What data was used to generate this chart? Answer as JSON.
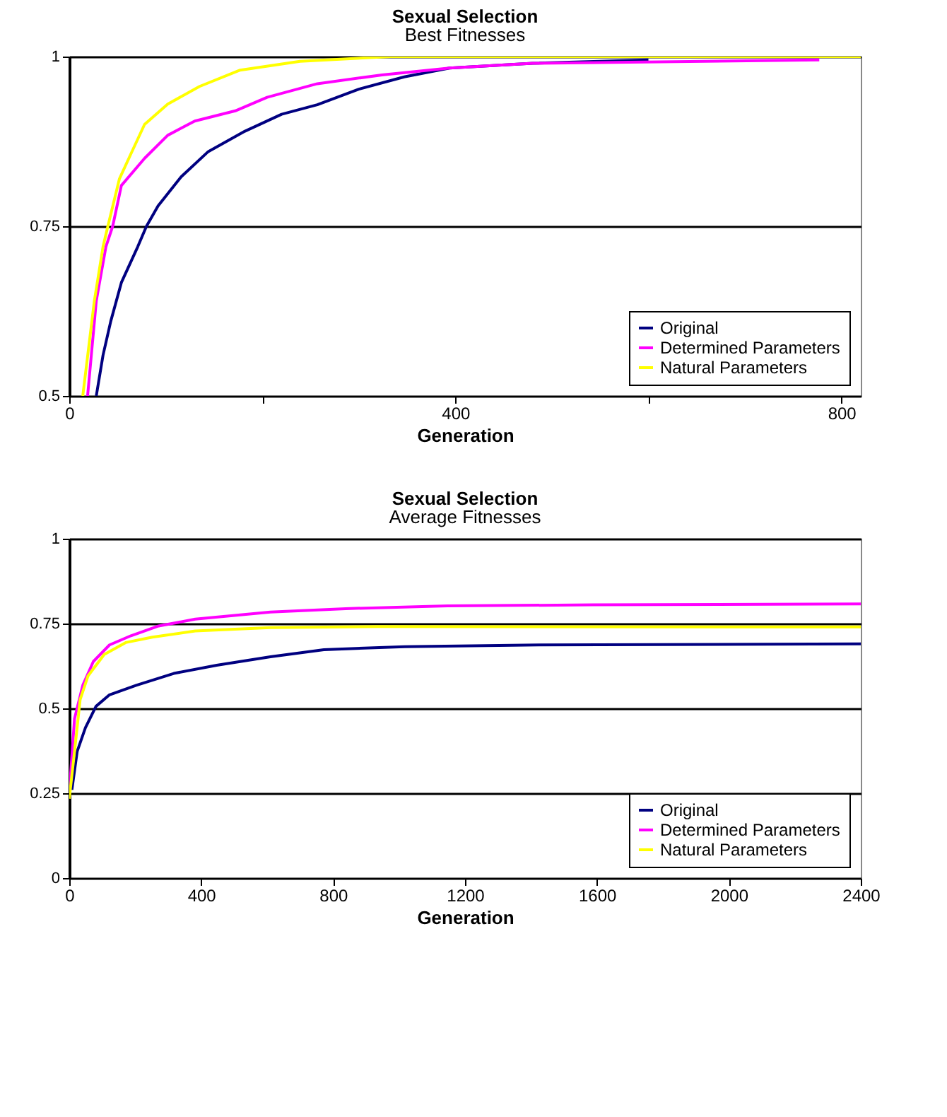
{
  "chart_data": [
    {
      "type": "line",
      "title": "Sexual Selection",
      "subtitle": "Best Fitnesses",
      "xlabel": "Generation",
      "xlim": [
        0,
        820
      ],
      "xticks": [
        0,
        {
          "value": 200,
          "label": null
        },
        400,
        {
          "value": 600,
          "label": null
        },
        800
      ],
      "ylim": [
        0.5,
        1
      ],
      "yticks": [
        0.5,
        0.75,
        1
      ],
      "grid": "y",
      "legend": "bottom right",
      "marker": "none",
      "line_style": "solid",
      "series": [
        {
          "name": "Original",
          "color": "#000080",
          "x": [
            28,
            35,
            43,
            54,
            71,
            80,
            92,
            116,
            144,
            182,
            220,
            257,
            300,
            347,
            394,
            480,
            600
          ],
          "values": [
            0.5,
            0.56,
            0.61,
            0.667,
            0.72,
            0.75,
            0.78,
            0.823,
            0.86,
            0.89,
            0.915,
            0.929,
            0.952,
            0.97,
            0.983,
            0.99,
            0.995
          ]
        },
        {
          "name": "Determined Parameters",
          "color": "#ff00ff",
          "x": [
            19,
            28,
            38,
            45,
            54,
            78,
            102,
            130,
            172,
            205,
            257,
            324,
            394,
            480,
            777
          ],
          "values": [
            0.5,
            0.64,
            0.72,
            0.75,
            0.81,
            0.85,
            0.884,
            0.905,
            0.92,
            0.94,
            0.96,
            0.973,
            0.983,
            0.99,
            0.995
          ]
        },
        {
          "name": "Natural Parameters",
          "color": "#ffff00",
          "x": [
            14,
            26,
            35,
            40,
            52,
            64,
            78,
            102,
            135,
            177,
            239,
            333,
            820
          ],
          "values": [
            0.5,
            0.64,
            0.72,
            0.75,
            0.82,
            0.857,
            0.9,
            0.93,
            0.956,
            0.98,
            0.993,
            1,
            1
          ]
        }
      ]
    },
    {
      "type": "line",
      "title": "Sexual Selection",
      "subtitle": "Average Fitnesses",
      "xlabel": "Generation",
      "xlim": [
        0,
        2400
      ],
      "xticks": [
        0,
        400,
        800,
        1200,
        1600,
        2000,
        2400
      ],
      "ylim": [
        0,
        1
      ],
      "yticks": [
        0,
        0.25,
        0.5,
        0.75,
        1
      ],
      "grid": "y",
      "legend": "bottom right",
      "marker": "none",
      "line_style": "solid",
      "series": [
        {
          "name": "Original",
          "color": "#000080",
          "x": [
            8,
            24,
            49,
            81,
            122,
            203,
            317,
            447,
            610,
            772,
            1017,
            1424,
            2400
          ],
          "values": [
            0.26,
            0.373,
            0.443,
            0.506,
            0.54,
            0.568,
            0.603,
            0.627,
            0.652,
            0.673,
            0.682,
            0.687,
            0.69
          ]
        },
        {
          "name": "Determined Parameters",
          "color": "#ff00ff",
          "x": [
            0,
            16,
            41,
            73,
            122,
            187,
            268,
            382,
            610,
            838,
            1147,
            1587,
            2400
          ],
          "values": [
            0.25,
            0.47,
            0.568,
            0.638,
            0.687,
            0.714,
            0.742,
            0.763,
            0.784,
            0.794,
            0.802,
            0.805,
            0.808
          ]
        },
        {
          "name": "Natural Parameters",
          "color": "#ffff00",
          "x": [
            0,
            16,
            33,
            57,
            106,
            171,
            252,
            382,
            610,
            936,
            2400
          ],
          "values": [
            0.234,
            0.373,
            0.526,
            0.596,
            0.659,
            0.694,
            0.71,
            0.728,
            0.738,
            0.741,
            0.74
          ]
        }
      ]
    }
  ]
}
